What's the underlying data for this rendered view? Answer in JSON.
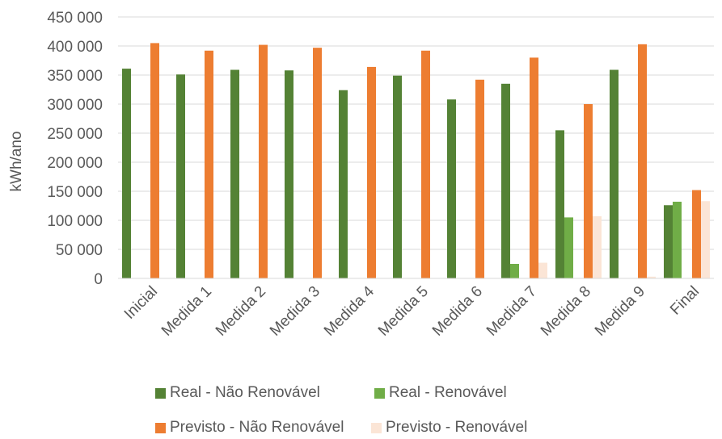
{
  "chart_data": {
    "type": "bar",
    "title": "",
    "xlabel": "",
    "ylabel": "kWh/ano",
    "ylim": [
      0,
      450000
    ],
    "ytick_step": 50000,
    "ytick_labels": [
      "0",
      "50 000",
      "100 000",
      "150 000",
      "200 000",
      "250 000",
      "300 000",
      "350 000",
      "400 000",
      "450 000"
    ],
    "grid": true,
    "legend_position": "bottom",
    "categories": [
      "Inicial",
      "Medida 1",
      "Medida 2",
      "Medida 3",
      "Medida 4",
      "Medida 5",
      "Medida 6",
      "Medida 7",
      "Medida 8",
      "Medida 9",
      "Final"
    ],
    "series": [
      {
        "name": "Real - Não Renovável",
        "color": "#548235",
        "values": [
          361000,
          351000,
          359000,
          358000,
          324000,
          349000,
          308000,
          335000,
          255000,
          359000,
          126000
        ]
      },
      {
        "name": "Real - Renovável",
        "color": "#70AD47",
        "values": [
          0,
          0,
          0,
          0,
          0,
          0,
          0,
          25000,
          105000,
          0,
          132000
        ]
      },
      {
        "name": "Previsto - Não Renovável",
        "color": "#ED7D31",
        "values": [
          405000,
          392000,
          402000,
          397000,
          364000,
          392000,
          342000,
          380000,
          300000,
          403000,
          152000
        ]
      },
      {
        "name": "Previsto - Renovável",
        "color": "#FBE5D6",
        "values": [
          0,
          0,
          0,
          0,
          0,
          0,
          0,
          27000,
          107000,
          3000,
          133000
        ]
      }
    ]
  }
}
